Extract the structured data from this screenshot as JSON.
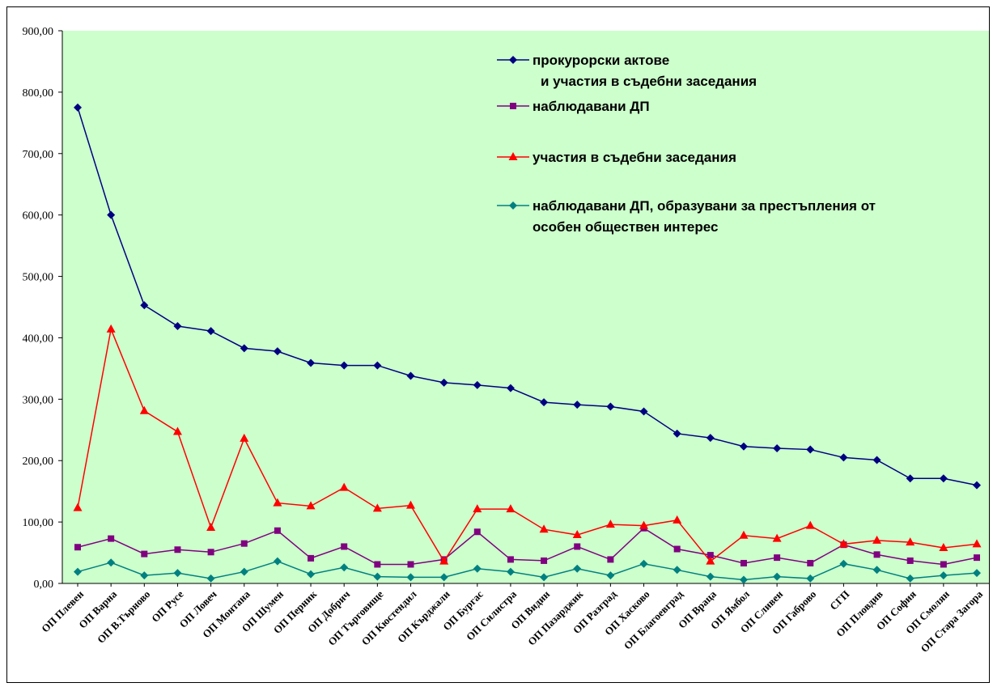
{
  "chart_data": {
    "type": "line",
    "title": "",
    "xlabel": "",
    "ylabel": "",
    "ylim": [
      0,
      900
    ],
    "ytick_labels": [
      "0,00",
      "100,00",
      "200,00",
      "300,00",
      "400,00",
      "500,00",
      "600,00",
      "700,00",
      "800,00",
      "900,00"
    ],
    "grid": false,
    "legend_position": "top-right",
    "plot_background": "#ccffcc",
    "categories": [
      "ОП Плевен",
      "ОП Варна",
      "ОП В.Търново",
      "ОП Русе",
      "ОП Ловеч",
      "ОП Монтана",
      "ОП Шумен",
      "ОП Перник",
      "ОП Добрич",
      "ОП Търговище",
      "ОП Кюстендил",
      "ОП Кърджали",
      "ОП Бургас",
      "ОП Силистра",
      "ОП Видин",
      "ОП Пазарджик",
      "ОП Разград",
      "ОП Хасково",
      "ОП Благоевград",
      "ОП Враца",
      "ОП Ямбол",
      "ОП Сливен",
      "ОП Габрово",
      "СГП",
      "ОП Пловдив",
      "ОП София",
      "ОП Смолян",
      "ОП Стара Загора"
    ],
    "series": [
      {
        "name": "прокурорски актове",
        "name_line2": "и участия в съдебни заседания",
        "color": "#000080",
        "marker": "diamond",
        "values": [
          775,
          600,
          453,
          419,
          411,
          383,
          378,
          359,
          355,
          355,
          338,
          327,
          323,
          318,
          295,
          291,
          288,
          280,
          244,
          237,
          223,
          220,
          218,
          205,
          201,
          171,
          171,
          160
        ]
      },
      {
        "name": "наблюдавани ДП",
        "color": "#800080",
        "marker": "square",
        "values": [
          59,
          73,
          48,
          55,
          51,
          65,
          86,
          41,
          60,
          31,
          31,
          39,
          84,
          39,
          37,
          60,
          39,
          90,
          56,
          46,
          33,
          42,
          33,
          63,
          47,
          37,
          31,
          42
        ]
      },
      {
        "name": "участия в съдебни заседания",
        "color": "#ff0000",
        "marker": "triangle",
        "values": [
          123,
          414,
          281,
          247,
          91,
          236,
          131,
          126,
          156,
          122,
          127,
          36,
          121,
          121,
          88,
          79,
          96,
          94,
          103,
          36,
          78,
          73,
          94,
          64,
          70,
          67,
          58,
          64
        ]
      },
      {
        "name": "наблюдавани ДП, образувани за престъпления от",
        "name_line2": "особен обществен интерес",
        "color": "#008080",
        "marker": "diamond",
        "values": [
          19,
          34,
          13,
          17,
          8,
          19,
          36,
          15,
          26,
          11,
          10,
          10,
          24,
          19,
          10,
          24,
          13,
          32,
          22,
          11,
          6,
          11,
          8,
          32,
          22,
          8,
          13,
          17
        ]
      }
    ]
  }
}
